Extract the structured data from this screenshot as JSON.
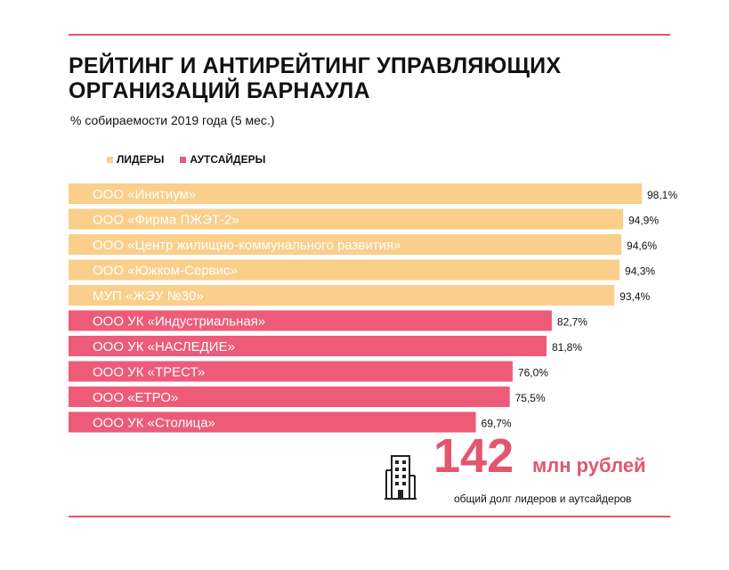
{
  "title_line1": "РЕЙТИНГ И АНТИРЕЙТИНГ УПРАВЛЯЮЩИХ",
  "title_line2": "ОРГАНИЗАЦИЙ БАРНАУЛА",
  "subtitle": "% собираемости 2019 года (5 мес.)",
  "legend": {
    "leaders": "ЛИДЕРЫ",
    "outsiders": "АУТСАЙДЕРЫ"
  },
  "colors": {
    "leaders": "#f9cf8b",
    "outsiders": "#ed5b78",
    "accent": "#e3566e"
  },
  "chart_data": {
    "type": "bar",
    "orientation": "horizontal",
    "categories": [
      "ООО «Инитиум»",
      "ООО «Фирма ПЖЭТ-2»",
      "ООО «Центр жилищно-коммунального развития»",
      "ООО «Южком-Сервис»",
      "МУП «ЖЭУ №30»",
      "ООО УК «Индустриальная»",
      "ООО УК «НАСЛЕДИЕ»",
      "ООО УК «ТРЕСТ»",
      "ООО «ЕТРО»",
      "ООО УК «Столица»"
    ],
    "values": [
      98.1,
      94.9,
      94.6,
      94.3,
      93.4,
      82.7,
      81.8,
      76.0,
      75.5,
      69.7
    ],
    "value_labels": [
      "98,1%",
      "94,9%",
      "94,6%",
      "94,3%",
      "93,4%",
      "82,7%",
      "81,8%",
      "76,0%",
      "75,5%",
      "69,7%"
    ],
    "groups": [
      "leaders",
      "leaders",
      "leaders",
      "leaders",
      "leaders",
      "outsiders",
      "outsiders",
      "outsiders",
      "outsiders",
      "outsiders"
    ],
    "xlim": [
      0,
      100
    ],
    "grid": false,
    "legend_position": "top-left"
  },
  "callout": {
    "number": "142",
    "unit": "млн рублей",
    "caption": "общий долг лидеров и аутсайдеров",
    "icon": "building-icon"
  }
}
